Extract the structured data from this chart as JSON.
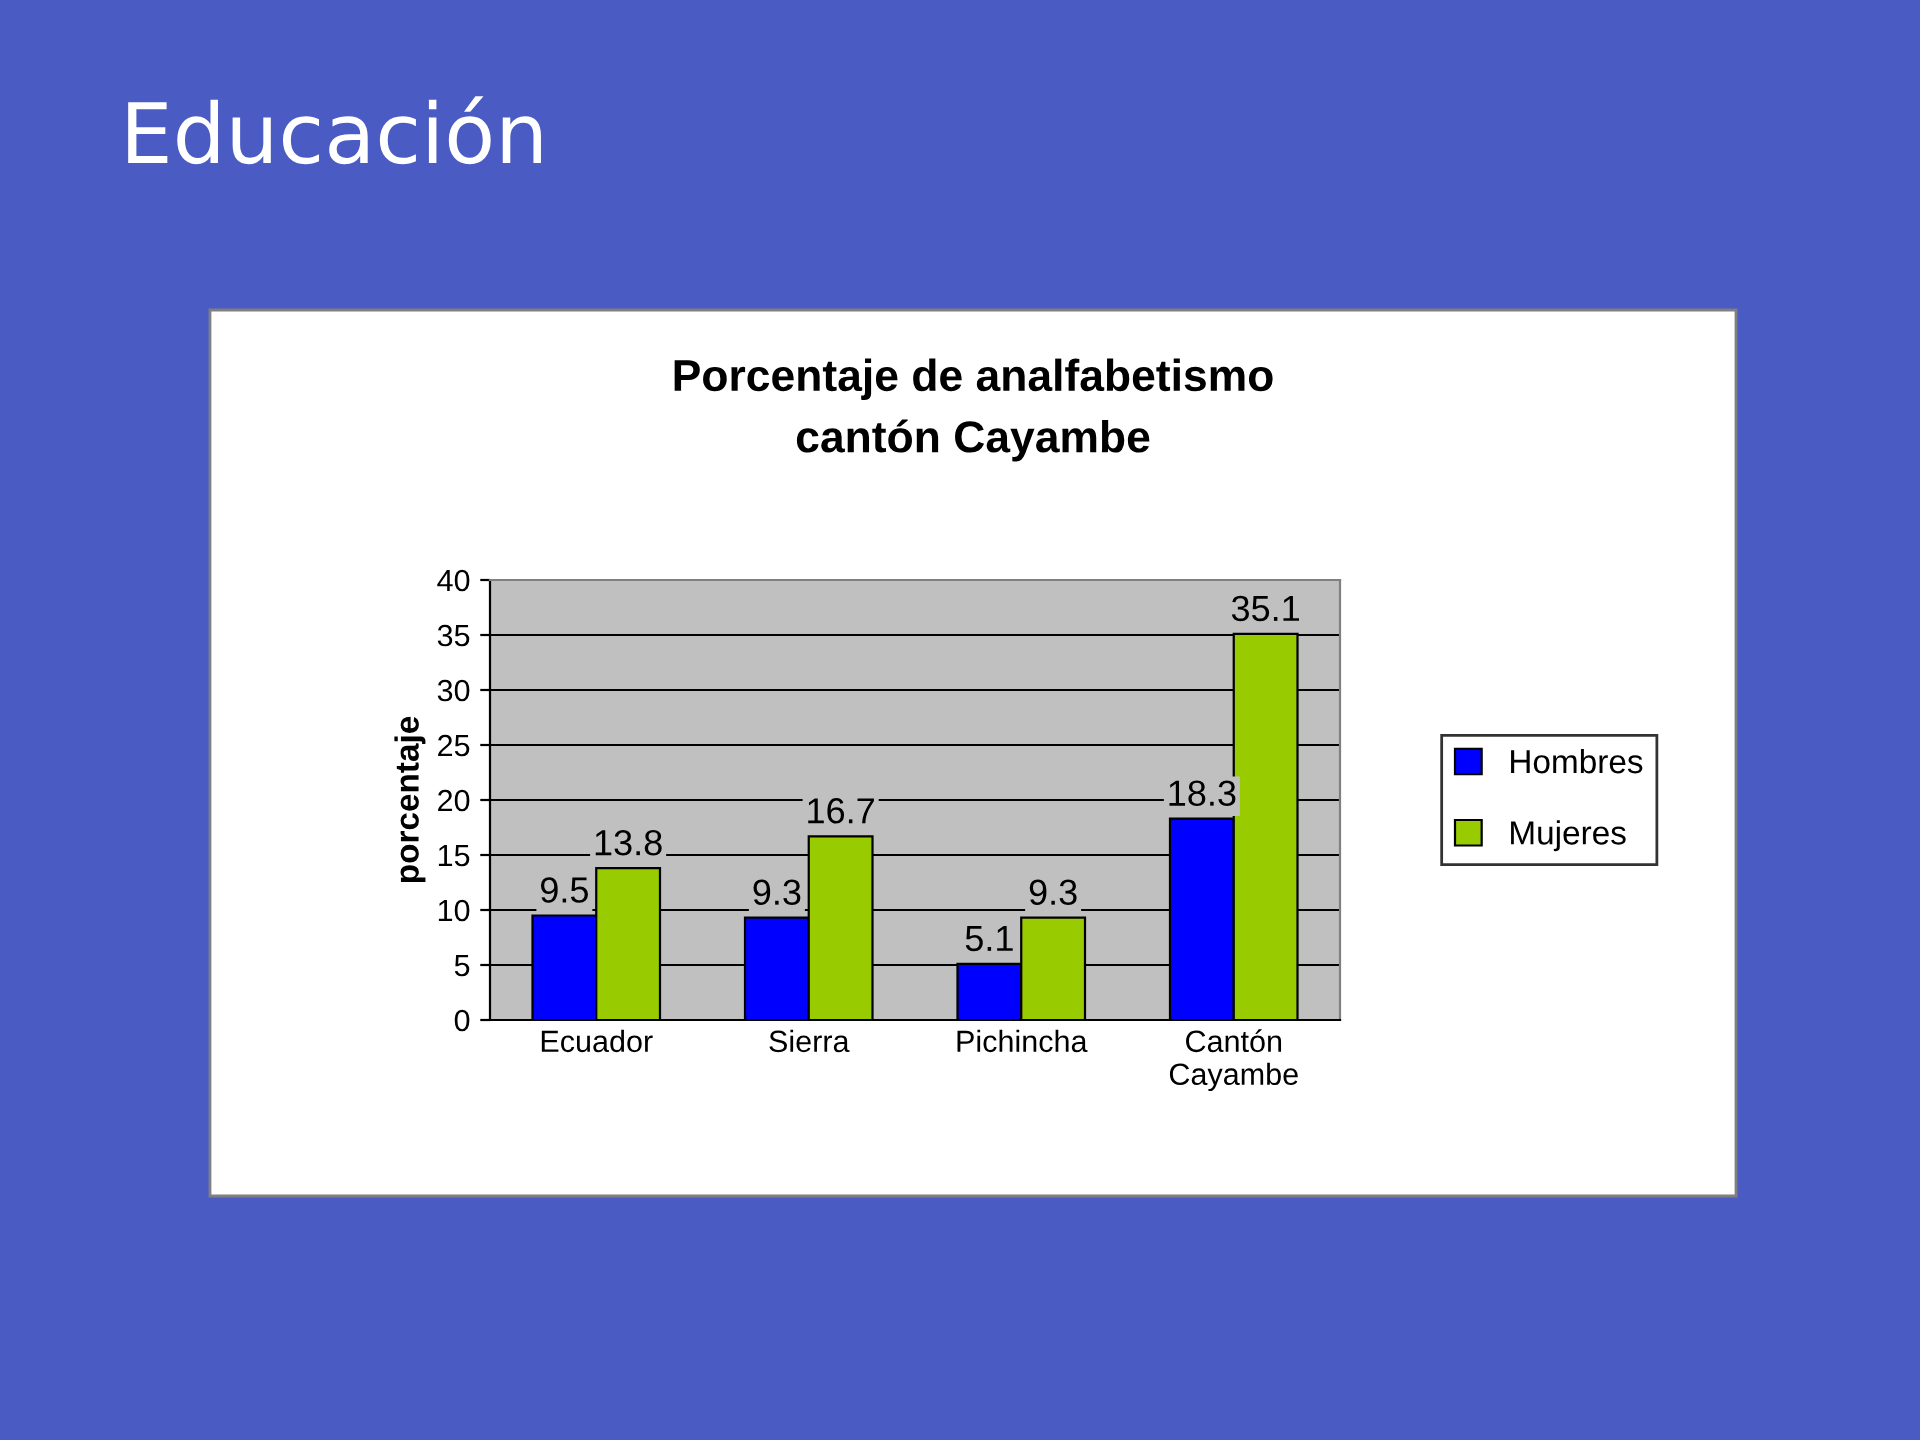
{
  "chart_data": {
    "type": "bar",
    "title": "Porcentaje de analfabetismo\ncantón Cayambe",
    "ylabel": "porcentaje",
    "annotations": [
      "Educación"
    ],
    "categories": [
      "Ecuador",
      "Sierra",
      "Pichincha",
      "Cantón\nCayambe"
    ],
    "series": [
      {
        "name": "Hombres",
        "color": "#0000ff",
        "values": [
          9.5,
          9.3,
          5.1,
          18.3
        ]
      },
      {
        "name": "Mujeres",
        "color": "#99cc00",
        "values": [
          13.8,
          16.7,
          9.3,
          35.1
        ]
      }
    ],
    "ylim": [
      0,
      40
    ],
    "yticks": [
      0,
      5,
      10,
      15,
      20,
      25,
      30,
      35,
      40
    ],
    "grid": "y",
    "legend": "right",
    "data_labels": true
  }
}
